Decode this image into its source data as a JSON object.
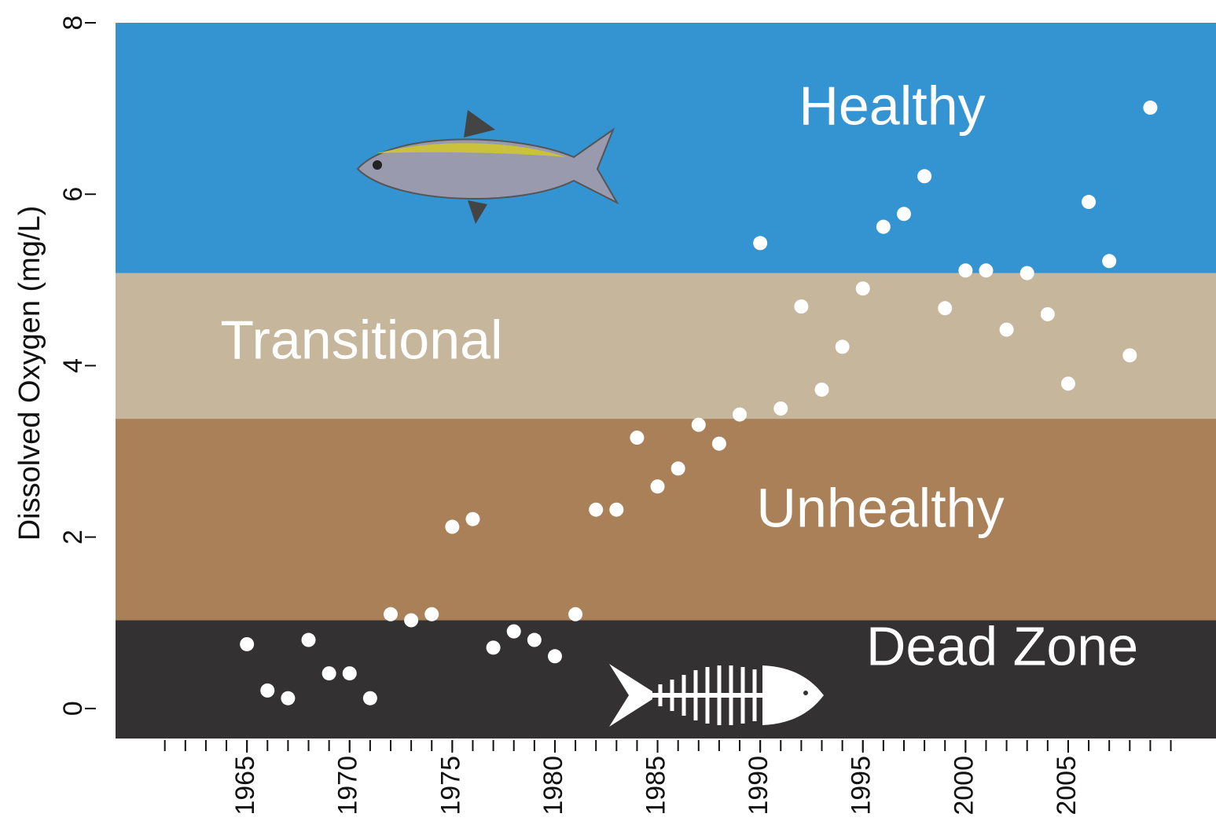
{
  "chart_data": {
    "type": "scatter",
    "y_label": "Dissolved Oxygen (mg/L)",
    "xlim": [
      1958.6,
      2012.2
    ],
    "ylim": [
      -0.35,
      8
    ],
    "xticks": [
      1965,
      1970,
      1975,
      1980,
      1985,
      1990,
      1995,
      2000,
      2005
    ],
    "xminor_ticks": [
      1961,
      1962,
      1963,
      1964,
      1965,
      1966,
      1967,
      1968,
      1969,
      1970,
      1971,
      1972,
      1973,
      1974,
      1975,
      1976,
      1977,
      1978,
      1979,
      1980,
      1981,
      1982,
      1983,
      1984,
      1985,
      1986,
      1987,
      1988,
      1989,
      1990,
      1991,
      1992,
      1993,
      1994,
      1995,
      1996,
      1997,
      1998,
      1999,
      2000,
      2001,
      2002,
      2003,
      2004,
      2005,
      2006,
      2007,
      2008,
      2009,
      2010
    ],
    "yticks": [
      0,
      2,
      4,
      6,
      8
    ],
    "bands": [
      {
        "name": "Dead Zone",
        "color": "#333132",
        "range": [
          -0.35,
          1.03
        ]
      },
      {
        "name": "Unhealthy",
        "color": "#a98058",
        "range": [
          1.03,
          3.38
        ]
      },
      {
        "name": "Transitional",
        "color": "#c5b69c",
        "range": [
          3.38,
          5.08
        ]
      },
      {
        "name": "Healthy",
        "color": "#3493d1",
        "range": [
          5.08,
          8
        ]
      }
    ],
    "color": "#ffffff",
    "x": [
      1965,
      1966,
      1967,
      1968,
      1969,
      1970,
      1971,
      1972,
      1973,
      1974,
      1975,
      1976,
      1977,
      1978,
      1979,
      1980,
      1981,
      1982,
      1983,
      1984,
      1985,
      1986,
      1987,
      1988,
      1989,
      1990,
      1991,
      1992,
      1993,
      1994,
      1995,
      1996,
      1997,
      1998,
      1999,
      2000,
      2001,
      2002,
      2003,
      2004,
      2005,
      2006,
      2007,
      2008,
      2009
    ],
    "values": [
      0.75,
      0.21,
      0.12,
      0.8,
      0.41,
      0.41,
      0.12,
      1.1,
      1.03,
      1.1,
      2.12,
      2.21,
      0.71,
      0.9,
      0.8,
      0.61,
      1.1,
      2.32,
      2.32,
      3.16,
      2.59,
      2.8,
      3.31,
      3.09,
      3.43,
      5.43,
      3.5,
      4.69,
      3.72,
      4.22,
      4.9,
      5.62,
      5.77,
      6.21,
      4.67,
      5.11,
      5.11,
      4.42,
      5.08,
      4.6,
      3.79,
      5.91,
      5.22,
      4.12,
      7.01
    ]
  }
}
